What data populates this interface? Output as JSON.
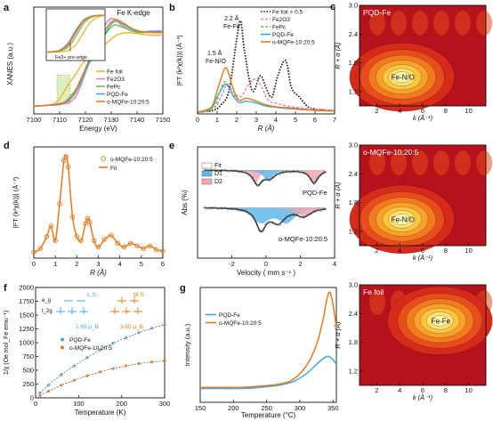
{
  "chart_data": [
    {
      "id": "a",
      "type": "line",
      "panel_label": "a",
      "title": "Fe K-edge",
      "xlabel": "Energy (eV)",
      "ylabel": "XANES (a.u.)",
      "xlim": [
        7100,
        7150
      ],
      "xticks": [
        "7100",
        "7110",
        "7120",
        "7130",
        "7140",
        "7150"
      ],
      "legend_position": "bottom-right",
      "inset_annotation": "Fe3+ pre-edge",
      "series": [
        {
          "name": "Fe foil",
          "color": "#f2b233",
          "x": [
            7100,
            7105,
            7108,
            7110,
            7112,
            7114,
            7116,
            7118,
            7120,
            7124,
            7128,
            7132,
            7136,
            7140,
            7145,
            7150
          ],
          "y": [
            0.05,
            0.06,
            0.08,
            0.14,
            0.24,
            0.34,
            0.42,
            0.52,
            0.6,
            0.7,
            0.8,
            0.9,
            0.93,
            0.92,
            0.9,
            0.9
          ]
        },
        {
          "name": "Fe2O3",
          "color": "#f07ea8",
          "x": [
            7100,
            7105,
            7110,
            7112,
            7114,
            7116,
            7118,
            7120,
            7122,
            7124,
            7126,
            7128,
            7130,
            7132,
            7134,
            7138,
            7142,
            7146,
            7150
          ],
          "y": [
            0.05,
            0.06,
            0.07,
            0.08,
            0.1,
            0.15,
            0.28,
            0.45,
            0.62,
            0.78,
            0.92,
            1.04,
            1.1,
            1.08,
            1.02,
            0.95,
            0.94,
            0.95,
            0.95
          ]
        },
        {
          "name": "FePc",
          "color": "#6fbf3c",
          "x": [
            7100,
            7105,
            7110,
            7112,
            7114,
            7116,
            7118,
            7120,
            7122,
            7125,
            7128,
            7131,
            7134,
            7138,
            7142,
            7146,
            7150
          ],
          "y": [
            0.05,
            0.06,
            0.07,
            0.1,
            0.16,
            0.24,
            0.34,
            0.48,
            0.62,
            0.78,
            0.92,
            1.02,
            1.0,
            0.95,
            0.93,
            0.94,
            0.94
          ]
        },
        {
          "name": "PQD-Fe",
          "color": "#3fa9e6",
          "x": [
            7100,
            7105,
            7110,
            7112,
            7114,
            7116,
            7118,
            7120,
            7122,
            7125,
            7128,
            7131,
            7134,
            7138,
            7142,
            7146,
            7150
          ],
          "y": [
            0.05,
            0.06,
            0.07,
            0.09,
            0.13,
            0.2,
            0.32,
            0.46,
            0.6,
            0.78,
            0.94,
            1.06,
            1.04,
            0.97,
            0.94,
            0.94,
            0.94
          ]
        },
        {
          "name": "o-MQFe-10:20:5",
          "color": "#e87a1d",
          "x": [
            7100,
            7105,
            7110,
            7112,
            7114,
            7116,
            7118,
            7120,
            7122,
            7125,
            7128,
            7131,
            7134,
            7138,
            7142,
            7146,
            7150
          ],
          "y": [
            0.05,
            0.06,
            0.08,
            0.1,
            0.15,
            0.23,
            0.36,
            0.5,
            0.65,
            0.82,
            0.98,
            1.08,
            1.06,
            0.98,
            0.94,
            0.93,
            0.93
          ]
        }
      ]
    },
    {
      "id": "b",
      "type": "line",
      "panel_label": "b",
      "xlabel": "R (Å)",
      "ylabel": "|FT (k²χ(k))| (Å⁻³)",
      "xlim": [
        0,
        7
      ],
      "xticks": [
        "0",
        "1",
        "2",
        "3",
        "4",
        "5",
        "6",
        "7"
      ],
      "legend_position": "top-right",
      "annotations": [
        "2.2 Å",
        "Fe-Fe",
        "1.5 Å",
        "Fe-N/O"
      ],
      "series": [
        {
          "name": "Fe foil × 0.5",
          "color": "#222222",
          "dash": "dotted",
          "x": [
            0,
            0.8,
            1.2,
            1.6,
            2.0,
            2.2,
            2.4,
            2.8,
            3.2,
            3.5,
            3.8,
            4.1,
            4.5,
            4.8,
            5.2,
            5.6,
            6,
            7
          ],
          "y": [
            0,
            0.3,
            1.2,
            3.5,
            12,
            15,
            10,
            3.5,
            6,
            4,
            2.5,
            6,
            8.5,
            4,
            2.5,
            1,
            0.5,
            0.2
          ]
        },
        {
          "name": "Fe2O3",
          "color": "#f07ea8",
          "dash": "dashed",
          "x": [
            0,
            0.8,
            1.2,
            1.5,
            1.8,
            2.2,
            2.6,
            3.0,
            3.3,
            3.6,
            4,
            5,
            7
          ],
          "y": [
            0,
            0.5,
            2.5,
            4.5,
            3.5,
            2.5,
            4.5,
            5.5,
            4,
            2,
            1.5,
            0.8,
            0.3
          ]
        },
        {
          "name": "FePc",
          "color": "#6fbf3c",
          "dash": "dashed",
          "x": [
            0,
            0.8,
            1.1,
            1.4,
            1.7,
            2.1,
            2.5,
            3,
            3.5,
            4,
            5,
            7
          ],
          "y": [
            0,
            0.5,
            3,
            5,
            3.5,
            2,
            2.3,
            1.8,
            1.2,
            0.8,
            0.5,
            0.2
          ]
        },
        {
          "name": "PQD-Fe",
          "color": "#3fa9e6",
          "dash": "solid",
          "x": [
            0,
            0.7,
            1.0,
            1.3,
            1.5,
            1.8,
            2.1,
            2.5,
            3,
            3.5,
            4,
            5,
            6,
            7
          ],
          "y": [
            0,
            0.6,
            2.5,
            4.2,
            4.5,
            2.8,
            1.6,
            1.8,
            1.5,
            1.0,
            0.8,
            0.5,
            0.3,
            0.2
          ]
        },
        {
          "name": "o-MQFe-10:20:5",
          "color": "#e87a1d",
          "dash": "solid",
          "x": [
            0,
            0.7,
            1.0,
            1.3,
            1.5,
            1.8,
            2.1,
            2.5,
            3,
            3.5,
            4,
            5,
            6,
            7
          ],
          "y": [
            0,
            0.8,
            3.5,
            6.5,
            7.2,
            4,
            2,
            2.3,
            1.8,
            1.2,
            0.9,
            0.6,
            0.3,
            0.2
          ]
        }
      ]
    },
    {
      "id": "c1",
      "type": "heatmap",
      "panel_label": "c",
      "title": "PQD-Fe",
      "annotation": "Fe-N/O",
      "xlabel": "k (Å⁻¹)",
      "ylabel": "R + α (Å)",
      "xticks": [
        "2",
        "4",
        "6",
        "8",
        "10"
      ],
      "yticks": [
        "1.2",
        "1.8",
        "2.4",
        "3.0"
      ],
      "peak_k": 4.2,
      "peak_R": 1.5
    },
    {
      "id": "c2",
      "type": "heatmap",
      "title": "o-MQFe-10:20:5",
      "annotation": "Fe-N/O",
      "xlabel": "k (Å⁻¹)",
      "ylabel": "R + α (Å)",
      "xticks": [
        "2",
        "4",
        "6",
        "8",
        "10"
      ],
      "yticks": [
        "1.2",
        "1.8",
        "2.4",
        "3.0"
      ],
      "peak_k": 4.2,
      "peak_R": 1.45
    },
    {
      "id": "c3",
      "type": "heatmap",
      "title": "Fe foil",
      "annotation": "Fe-Fe",
      "xlabel": "k (Å⁻¹)",
      "ylabel": "R + α (Å)",
      "xticks": [
        "2",
        "4",
        "6",
        "8",
        "10"
      ],
      "yticks": [
        "1.2",
        "1.8",
        "2.4",
        "3.0"
      ],
      "peak_k": 7.5,
      "peak_R": 2.25
    },
    {
      "id": "d",
      "type": "line",
      "panel_label": "d",
      "xlabel": "R (Å)",
      "ylabel": "|FT (k²χ(k))| (Å⁻³)",
      "xlim": [
        0,
        6
      ],
      "xticks": [
        "0",
        "1",
        "2",
        "3",
        "4",
        "5",
        "6"
      ],
      "legend_position": "top-right",
      "series": [
        {
          "name": "o-MQFe-10:20:5",
          "color": "#e87a1d",
          "marker": "circle",
          "x": [
            0,
            0.3,
            0.6,
            0.8,
            1.0,
            1.2,
            1.4,
            1.5,
            1.6,
            1.8,
            2.0,
            2.2,
            2.4,
            2.5,
            2.6,
            2.8,
            3.0,
            3.3,
            3.6,
            3.9,
            4.2,
            4.5,
            4.8,
            5.1,
            5.4,
            5.7,
            6.0
          ],
          "y": [
            0.3,
            0.6,
            1.5,
            2.3,
            1.2,
            4.0,
            7.3,
            7.6,
            6.8,
            3.0,
            1.5,
            1.2,
            2.5,
            2.9,
            2.6,
            1.2,
            0.7,
            1.3,
            1.6,
            1.0,
            0.7,
            1.0,
            0.8,
            0.6,
            0.8,
            0.5,
            0.4
          ]
        },
        {
          "name": "Fit",
          "color": "#e87a1d",
          "marker": "none",
          "x": [
            0,
            0.3,
            0.6,
            0.8,
            1.0,
            1.2,
            1.4,
            1.5,
            1.6,
            1.8,
            2.0,
            2.2,
            2.4,
            2.5,
            2.6,
            2.8,
            3.0,
            3.3,
            3.6,
            3.9,
            4.2,
            4.5,
            4.8,
            5.1,
            5.4,
            5.7,
            6.0
          ],
          "y": [
            0.3,
            0.6,
            1.5,
            2.3,
            1.2,
            4.0,
            7.3,
            7.6,
            6.8,
            3.0,
            1.5,
            1.2,
            2.5,
            2.9,
            2.6,
            1.2,
            0.7,
            1.3,
            1.6,
            1.0,
            0.7,
            1.0,
            0.8,
            0.6,
            0.8,
            0.5,
            0.4
          ]
        }
      ]
    },
    {
      "id": "e",
      "type": "line",
      "panel_label": "e",
      "xlabel": "Velocity  ( mm s⁻¹ )",
      "ylabel": "Abs (%)",
      "xlim": [
        -4,
        4
      ],
      "xticks": [
        "-2",
        "0",
        "2",
        "4"
      ],
      "legend": [
        "Fit",
        "D1",
        "D2"
      ],
      "legend_colors": [
        "#ffffff",
        "#5fb8ea",
        "#f2a8b0"
      ],
      "sample_labels": [
        "PQD-Fe",
        "o-MQFe-10:20:5"
      ]
    },
    {
      "id": "f",
      "type": "line",
      "panel_label": "f",
      "xlabel": "Temperature (K)",
      "ylabel": "1/χ (Oe mol_Fe emu⁻¹)",
      "xlim": [
        0,
        300
      ],
      "ylim": [
        0,
        2000
      ],
      "xticks": [
        "0",
        "100",
        "200",
        "300"
      ],
      "yticks": [
        "0",
        "250",
        "500",
        "750",
        "1000",
        "1250",
        "1500",
        "1750",
        "2000"
      ],
      "legend_position": "left",
      "inset": {
        "ls_label": "L.S.",
        "ms_label": "M.S.",
        "eg": "e_g",
        "t2g": "t_2g",
        "ls_moment": "1.69 μ_B",
        "ms_moment": "3.65 μ_B"
      },
      "series": [
        {
          "name": "PQD-Fe",
          "color": "#3fa9e6",
          "x": [
            10,
            30,
            60,
            90,
            120,
            150,
            180,
            210,
            240,
            270,
            300
          ],
          "y": [
            90,
            230,
            420,
            580,
            730,
            870,
            990,
            1090,
            1180,
            1260,
            1330
          ]
        },
        {
          "name": "o-MQFe-10:20:5",
          "color": "#e87a1d",
          "x": [
            10,
            30,
            60,
            90,
            120,
            150,
            180,
            210,
            240,
            270,
            300
          ],
          "y": [
            40,
            120,
            230,
            320,
            400,
            470,
            530,
            580,
            620,
            650,
            670
          ]
        }
      ]
    },
    {
      "id": "g",
      "type": "line",
      "panel_label": "g",
      "xlabel": "Temperature (°C)",
      "ylabel": "Intensity (a.u.)",
      "xlim": [
        150,
        355
      ],
      "xticks": [
        "150",
        "200",
        "250",
        "300",
        "350"
      ],
      "legend_position": "top-left",
      "series": [
        {
          "name": "PQD-Fe",
          "color": "#3fa9e6",
          "x": [
            150,
            180,
            210,
            240,
            270,
            290,
            310,
            325,
            335,
            343,
            350,
            355
          ],
          "y": [
            0.12,
            0.12,
            0.12,
            0.13,
            0.15,
            0.18,
            0.25,
            0.33,
            0.38,
            0.4,
            0.37,
            0.33
          ]
        },
        {
          "name": "o-MQFe-10:20:5",
          "color": "#e87a1d",
          "x": [
            150,
            180,
            210,
            240,
            270,
            290,
            310,
            325,
            335,
            340,
            345,
            350,
            355
          ],
          "y": [
            0.13,
            0.13,
            0.13,
            0.14,
            0.16,
            0.2,
            0.32,
            0.5,
            0.72,
            0.88,
            0.96,
            0.85,
            0.65
          ]
        }
      ]
    }
  ]
}
